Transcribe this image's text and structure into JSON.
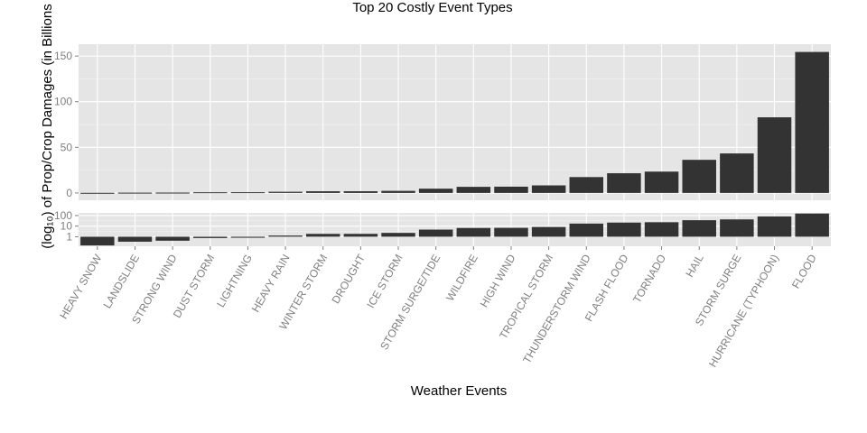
{
  "chart_data": {
    "type": "bar",
    "title": "Top 20 Costly Event Types",
    "xlabel": "Weather Events",
    "ylabel": "(log₁₀) of Prop/Crop Damages (in Billions",
    "categories": [
      "HEAVY SNOW",
      "LANDSLIDE",
      "STRONG WIND",
      "DUST STORM",
      "LIGHTNING",
      "HEAVY RAIN",
      "WINTER STORM",
      "DROUGHT",
      "ICE STORM",
      "STORM SURGE/TIDE",
      "WILDFIRE",
      "HIGH WIND",
      "TROPICAL STORM",
      "THUNDERSTORM WIND",
      "FLASH FLOOD",
      "TORNADO",
      "HAIL",
      "STORM SURGE",
      "HURRICANE (TYPHOON)",
      "FLOOD"
    ],
    "values": [
      0.15,
      0.34,
      0.42,
      0.75,
      0.8,
      1.3,
      1.86,
      1.87,
      2.3,
      4.7,
      6.7,
      6.9,
      8.3,
      17.4,
      21.6,
      23.4,
      36.3,
      43.3,
      82.9,
      154.5
    ],
    "panels": [
      {
        "scale": "linear",
        "ylim": [
          -8,
          163
        ],
        "ticks": [
          0,
          50,
          100,
          150
        ]
      },
      {
        "scale": "log10",
        "ylim": [
          -0.9,
          2.25
        ],
        "ticks": [
          1,
          10,
          100
        ]
      }
    ],
    "grid": true,
    "legend": "none",
    "colors": {
      "bar": "#333333",
      "panel": "#e5e5e5",
      "grid": "#ffffff",
      "minor_grid": "#f2f2f2",
      "tick_text": "#7f7f7f"
    }
  }
}
